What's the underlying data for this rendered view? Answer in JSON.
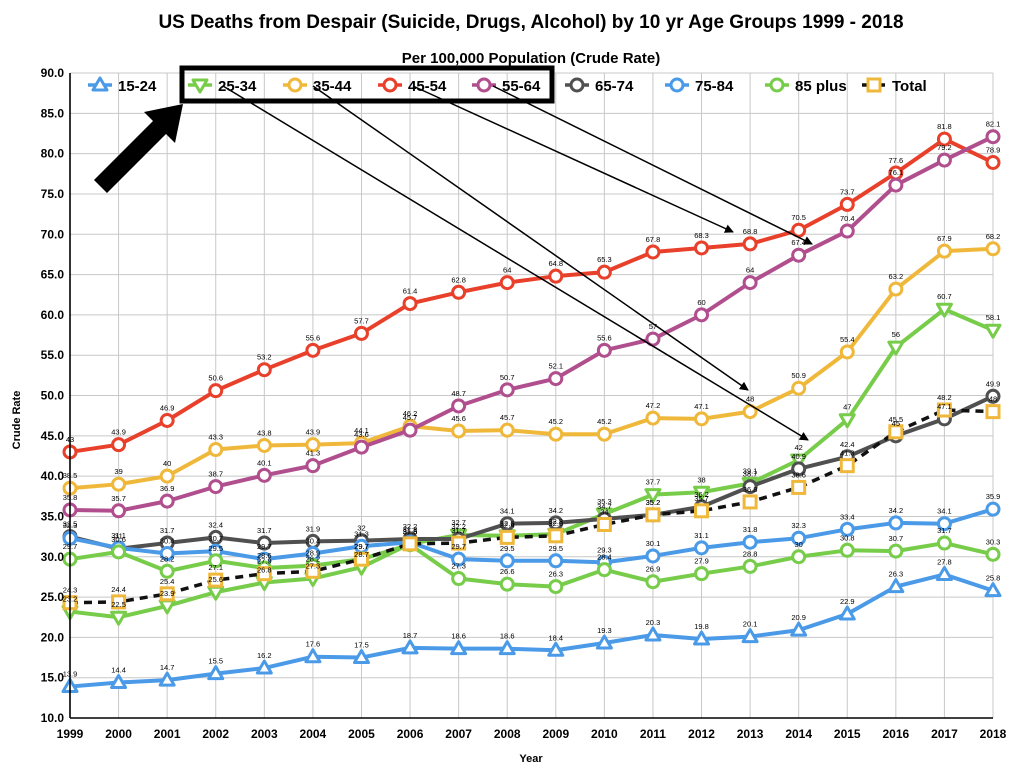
{
  "chart_data": {
    "type": "line",
    "title": "US Deaths from Despair (Suicide, Drugs, Alcohol) by 10 yr Age Groups 1999 - 2018",
    "subtitle": "Per 100,000 Population (Crude Rate)",
    "xlabel": "Year",
    "ylabel": "Crude Rate",
    "ylim": [
      10,
      90
    ],
    "yticks": [
      "10.0",
      "15.0",
      "20.0",
      "25.0",
      "30.0",
      "35.0",
      "40.0",
      "45.0",
      "50.0",
      "55.0",
      "60.0",
      "65.0",
      "70.0",
      "75.0",
      "80.0",
      "85.0",
      "90.0"
    ],
    "x": [
      "1999",
      "2000",
      "2001",
      "2002",
      "2003",
      "2004",
      "2005",
      "2006",
      "2007",
      "2008",
      "2009",
      "2010",
      "2011",
      "2012",
      "2013",
      "2014",
      "2015",
      "2016",
      "2017",
      "2018"
    ],
    "grid": true,
    "legend_position": "top",
    "series": [
      {
        "name": "15-24",
        "color": "#4a9ae8",
        "marker": "triangle-up",
        "values": [
          13.9,
          14.4,
          14.7,
          15.5,
          16.2,
          17.6,
          17.5,
          18.7,
          18.6,
          18.6,
          18.4,
          19.3,
          20.3,
          19.8,
          20.1,
          20.9,
          22.9,
          26.3,
          27.8,
          25.8
        ]
      },
      {
        "name": "25-34",
        "color": "#77cc4a",
        "marker": "triangle-down",
        "values": [
          23.2,
          22.5,
          23.9,
          25.6,
          26.8,
          27.3,
          28.7,
          31.6,
          32.7,
          32.6,
          32.8,
          35.3,
          37.7,
          38,
          39.1,
          42,
          47,
          56,
          60.7,
          58.1
        ]
      },
      {
        "name": "35-44",
        "color": "#f0b83a",
        "marker": "circle",
        "values": [
          38.5,
          39,
          40,
          43.3,
          43.8,
          43.9,
          44.1,
          46.2,
          45.6,
          45.7,
          45.2,
          45.2,
          47.2,
          47.1,
          48,
          50.9,
          55.4,
          63.2,
          67.9,
          68.2
        ]
      },
      {
        "name": "45-54",
        "color": "#e8402a",
        "marker": "circle",
        "values": [
          43,
          43.9,
          46.9,
          50.6,
          53.2,
          55.6,
          57.7,
          61.4,
          62.8,
          64,
          64.8,
          65.3,
          67.8,
          68.3,
          68.8,
          70.5,
          73.7,
          77.6,
          81.8,
          78.9
        ]
      },
      {
        "name": "55-64",
        "color": "#b04e8e",
        "marker": "circle",
        "values": [
          35.8,
          35.7,
          36.9,
          38.7,
          40.1,
          41.3,
          43.6,
          45.7,
          48.7,
          50.7,
          52.1,
          55.6,
          57,
          60,
          64,
          67.4,
          70.4,
          76.1,
          79.2,
          82.1
        ]
      },
      {
        "name": "65-74",
        "color": "#505050",
        "marker": "circle",
        "values": [
          32.5,
          31,
          31.7,
          32.4,
          31.7,
          31.9,
          32,
          32.2,
          32.2,
          34.1,
          34.2,
          34.7,
          35.2,
          36.2,
          38.7,
          40.9,
          42.4,
          45,
          47.1,
          49.9
        ]
      },
      {
        "name": "75-84",
        "color": "#4a9ae8",
        "marker": "circle",
        "values": [
          32.3,
          31.1,
          30.4,
          30.7,
          29.7,
          30.4,
          31.3,
          31.8,
          29.7,
          29.5,
          29.5,
          29.3,
          30.1,
          31.1,
          31.8,
          32.3,
          33.4,
          34.2,
          34.1,
          35.9
        ]
      },
      {
        "name": "85 plus",
        "color": "#77cc4a",
        "marker": "circle",
        "values": [
          29.7,
          30.6,
          28.2,
          29.5,
          28.6,
          28.9,
          29.7,
          31.5,
          27.3,
          26.6,
          26.3,
          28.4,
          26.9,
          27.9,
          28.8,
          30,
          30.8,
          30.7,
          31.7,
          30.3
        ]
      },
      {
        "name": "Total",
        "color": "#111111",
        "marker": "square",
        "marker_color": "#f0b83a",
        "dashed": true,
        "values": [
          24.3,
          24.4,
          25.4,
          27.1,
          27.9,
          28.2,
          29.7,
          31.6,
          31.7,
          32.4,
          32.6,
          34,
          35.2,
          35.7,
          36.8,
          38.6,
          41.3,
          45.5,
          48.2,
          48
        ]
      }
    ]
  }
}
